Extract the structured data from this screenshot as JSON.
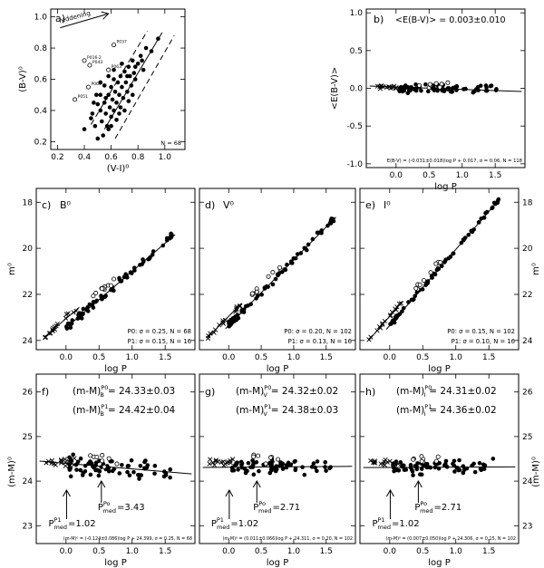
{
  "chart_data": [
    {
      "id": "a",
      "type": "scatter",
      "panel_label": "a)",
      "xlabel": "(V-I)⁰",
      "ylabel": "(B-V)⁰",
      "xlim": [
        0.15,
        1.15
      ],
      "ylim": [
        0.15,
        1.05
      ],
      "xticks": [
        0.2,
        0.4,
        0.6,
        0.8,
        1.0
      ],
      "yticks": [
        0.2,
        0.4,
        0.6,
        0.8,
        1.0
      ],
      "xtick_labels": [
        "0.2",
        "0.4",
        "0.6",
        "0.8",
        "1.0"
      ],
      "ytick_labels": [
        "0.2",
        "0.4",
        "0.6",
        "0.8",
        "1.0"
      ],
      "annotation": "reddening",
      "count_label": "N = 68",
      "labeled_stars": [
        {
          "label": "P037",
          "x": 0.62,
          "y": 0.82
        },
        {
          "label": "P016-2",
          "x": 0.4,
          "y": 0.72
        },
        {
          "label": "P043",
          "x": 0.44,
          "y": 0.69
        },
        {
          "label": "P063",
          "x": 0.58,
          "y": 0.66
        },
        {
          "label": "P069",
          "x": 0.43,
          "y": 0.55
        },
        {
          "label": "P051",
          "x": 0.33,
          "y": 0.47
        }
      ],
      "points": [
        [
          0.4,
          0.28
        ],
        [
          0.45,
          0.35
        ],
        [
          0.48,
          0.3
        ],
        [
          0.5,
          0.22
        ],
        [
          0.52,
          0.4
        ],
        [
          0.53,
          0.33
        ],
        [
          0.55,
          0.45
        ],
        [
          0.56,
          0.38
        ],
        [
          0.57,
          0.3
        ],
        [
          0.58,
          0.5
        ],
        [
          0.59,
          0.42
        ],
        [
          0.6,
          0.36
        ],
        [
          0.6,
          0.55
        ],
        [
          0.61,
          0.47
        ],
        [
          0.62,
          0.4
        ],
        [
          0.62,
          0.6
        ],
        [
          0.63,
          0.52
        ],
        [
          0.64,
          0.45
        ],
        [
          0.65,
          0.58
        ],
        [
          0.66,
          0.5
        ],
        [
          0.67,
          0.62
        ],
        [
          0.68,
          0.55
        ],
        [
          0.69,
          0.48
        ],
        [
          0.7,
          0.65
        ],
        [
          0.71,
          0.58
        ],
        [
          0.72,
          0.52
        ],
        [
          0.73,
          0.68
        ],
        [
          0.74,
          0.62
        ],
        [
          0.75,
          0.56
        ],
        [
          0.76,
          0.72
        ],
        [
          0.77,
          0.64
        ],
        [
          0.78,
          0.6
        ],
        [
          0.8,
          0.7
        ],
        [
          0.82,
          0.75
        ],
        [
          0.84,
          0.66
        ],
        [
          0.86,
          0.8
        ],
        [
          0.9,
          0.78
        ],
        [
          0.95,
          0.86
        ],
        [
          0.47,
          0.45
        ],
        [
          0.52,
          0.5
        ],
        [
          0.55,
          0.56
        ],
        [
          0.58,
          0.28
        ],
        [
          0.46,
          0.38
        ],
        [
          0.5,
          0.44
        ],
        [
          0.54,
          0.24
        ],
        [
          0.64,
          0.34
        ],
        [
          0.67,
          0.42
        ],
        [
          0.7,
          0.4
        ],
        [
          0.73,
          0.46
        ],
        [
          0.76,
          0.5
        ],
        [
          0.58,
          0.62
        ],
        [
          0.52,
          0.58
        ],
        [
          0.49,
          0.5
        ],
        [
          0.68,
          0.7
        ],
        [
          0.62,
          0.66
        ],
        [
          0.56,
          0.48
        ],
        [
          0.6,
          0.3
        ],
        [
          0.66,
          0.38
        ],
        [
          0.72,
          0.62
        ],
        [
          0.78,
          0.68
        ],
        [
          0.83,
          0.72
        ]
      ],
      "fit_line": [
        [
          0.55,
          0.28
        ],
        [
          0.98,
          0.9
        ]
      ],
      "dashed_lines": [
        [
          [
            0.45,
            0.31
          ],
          [
            0.87,
            0.91
          ]
        ],
        [
          [
            0.63,
            0.22
          ],
          [
            1.07,
            0.88
          ]
        ]
      ]
    },
    {
      "id": "b",
      "type": "scatter",
      "panel_label": "b)",
      "title": "<E(B-V)> = 0.003±0.010",
      "xlabel": "log P",
      "ylabel": "<E(B-V)>",
      "xlim": [
        -0.45,
        1.95
      ],
      "ylim": [
        -1.05,
        1.05
      ],
      "xticks": [
        0.0,
        0.5,
        1.0,
        1.5
      ],
      "yticks": [
        -1.0,
        -0.5,
        0.0,
        0.5,
        1.0
      ],
      "xtick_labels": [
        "0.0",
        "0.5",
        "1.0",
        "1.5"
      ],
      "ytick_labels": [
        "-1.0",
        "-0.5",
        "0.0",
        "0.5",
        "1.0"
      ],
      "fit_text": "E(B-V) = (-0.031±0.018)log P + 0.017, σ = 0.06, N = 118",
      "fit": {
        "slope": -0.031,
        "intercept": 0.017,
        "x_range": [
          -0.4,
          1.9
        ]
      }
    },
    {
      "id": "c",
      "type": "scatter",
      "panel_label": "c)",
      "band": "B⁰",
      "xlabel": "log P",
      "ylabel": "m⁰",
      "xlim": [
        -0.45,
        1.95
      ],
      "ylim": [
        24.4,
        17.4
      ],
      "xticks": [
        0.0,
        0.5,
        1.0,
        1.5
      ],
      "yticks": [
        18,
        20,
        22,
        24
      ],
      "xtick_labels": [
        "0.0",
        "0.5",
        "1.0",
        "1.5"
      ],
      "ytick_labels": [
        "18",
        "20",
        "22",
        "24"
      ],
      "stats": [
        "P0: σ = 0.25, N = 68",
        "P1: σ = 0.15, N = 16"
      ],
      "fit_p0": {
        "slope": -2.45,
        "intercept": 23.45,
        "x_range": [
          0.0,
          1.65
        ]
      },
      "fit_p1": {
        "slope": -2.45,
        "intercept": 23.05,
        "x_range": [
          -0.32,
          0.2
        ]
      }
    },
    {
      "id": "d",
      "type": "scatter",
      "panel_label": "d)",
      "band": "V⁰",
      "xlabel": "log P",
      "ylabel": "m⁰",
      "xlim": [
        -0.45,
        1.95
      ],
      "ylim": [
        24.4,
        17.4
      ],
      "xticks": [
        0.0,
        0.5,
        1.0,
        1.5
      ],
      "yticks": [
        18,
        20,
        22,
        24
      ],
      "xtick_labels": [
        "0.0",
        "0.5",
        "1.0",
        "1.5"
      ],
      "ytick_labels": [
        "18",
        "20",
        "22",
        "24"
      ],
      "stats": [
        "P0: σ = 0.20, N = 102",
        "P1: σ = 0.13, N = 16"
      ],
      "fit_p0": {
        "slope": -2.85,
        "intercept": 23.35,
        "x_range": [
          -0.05,
          1.65
        ]
      },
      "fit_p1": {
        "slope": -2.85,
        "intercept": 22.95,
        "x_range": [
          -0.32,
          0.2
        ]
      }
    },
    {
      "id": "e",
      "type": "scatter",
      "panel_label": "e)",
      "band": "I⁰",
      "xlabel": "log P",
      "ylabel": "m⁰",
      "xlim": [
        -0.45,
        1.95
      ],
      "ylim": [
        24.4,
        17.4
      ],
      "xticks": [
        0.0,
        0.5,
        1.0,
        1.5
      ],
      "yticks": [
        18,
        20,
        22,
        24
      ],
      "xtick_labels": [
        "0.0",
        "0.5",
        "1.0",
        "1.5"
      ],
      "ytick_labels": [
        "18",
        "20",
        "22",
        "24"
      ],
      "stats": [
        "P0: σ = 0.15, N = 102",
        "P1: σ = 0.10, N = 16"
      ],
      "fit_p0": {
        "slope": -3.3,
        "intercept": 23.35,
        "x_range": [
          -0.05,
          1.65
        ]
      },
      "fit_p1": {
        "slope": -3.3,
        "intercept": 22.95,
        "x_range": [
          -0.32,
          0.2
        ]
      }
    },
    {
      "id": "f",
      "type": "scatter",
      "panel_label": "f)",
      "band": "B",
      "xlabel": "log P",
      "ylabel": "(m-M)⁰",
      "xlim": [
        -0.45,
        1.95
      ],
      "ylim": [
        22.6,
        26.4
      ],
      "xticks": [
        0.0,
        0.5,
        1.0,
        1.5
      ],
      "yticks": [
        23,
        24,
        25,
        26
      ],
      "xtick_labels": [
        "0.0",
        "0.5",
        "1.0",
        "1.5"
      ],
      "ytick_labels": [
        "23",
        "24",
        "25",
        "26"
      ],
      "dm_p0": "24.33±0.03",
      "dm_p1": "24.42±0.04",
      "pmed_p1": "1.02",
      "pmed_p0": "3.43",
      "pmed_p1_logp": 0.0086,
      "pmed_p0_logp": 0.535,
      "fit_text": "(m-M)⁰ = (-0.124±0.086)log P + 24.399, σ = 0.25, N = 68",
      "fit": {
        "slope": -0.124,
        "intercept": 24.399,
        "x_range": [
          -0.4,
          1.9
        ]
      }
    },
    {
      "id": "g",
      "type": "scatter",
      "panel_label": "g)",
      "band": "V",
      "xlabel": "log P",
      "ylabel": "(m-M)⁰",
      "xlim": [
        -0.45,
        1.95
      ],
      "ylim": [
        22.6,
        26.4
      ],
      "xticks": [
        0.0,
        0.5,
        1.0,
        1.5
      ],
      "yticks": [
        23,
        24,
        25,
        26
      ],
      "xtick_labels": [
        "0.0",
        "0.5",
        "1.0",
        "1.5"
      ],
      "ytick_labels": [
        "23",
        "24",
        "25",
        "26"
      ],
      "dm_p0": "24.32±0.02",
      "dm_p1": "24.38±0.03",
      "pmed_p1": "1.02",
      "pmed_p0": "2.71",
      "pmed_p1_logp": 0.0086,
      "pmed_p0_logp": 0.433,
      "fit_text": "(m-M)⁰ = (0.011±0.066)log P + 24.311, σ = 0.20, N = 102",
      "fit": {
        "slope": 0.011,
        "intercept": 24.311,
        "x_range": [
          -0.4,
          1.9
        ]
      }
    },
    {
      "id": "h",
      "type": "scatter",
      "panel_label": "h)",
      "band": "I",
      "xlabel": "log P",
      "ylabel": "(m-M)⁰",
      "xlim": [
        -0.45,
        1.95
      ],
      "ylim": [
        22.6,
        26.4
      ],
      "xticks": [
        0.0,
        0.5,
        1.0,
        1.5
      ],
      "yticks": [
        23,
        24,
        25,
        26
      ],
      "xtick_labels": [
        "0.0",
        "0.5",
        "1.0",
        "1.5"
      ],
      "ytick_labels": [
        "23",
        "24",
        "25",
        "26"
      ],
      "dm_p0": "24.31±0.02",
      "dm_p1": "24.36±0.02",
      "pmed_p1": "1.02",
      "pmed_p0": "2.71",
      "pmed_p1_logp": 0.0086,
      "pmed_p0_logp": 0.433,
      "fit_text": "(m-M)⁰ = (0.007±0.050)log P + 24.306, σ = 0.15, N = 102",
      "fit": {
        "slope": 0.007,
        "intercept": 24.306,
        "x_range": [
          -0.4,
          1.9
        ]
      }
    }
  ]
}
